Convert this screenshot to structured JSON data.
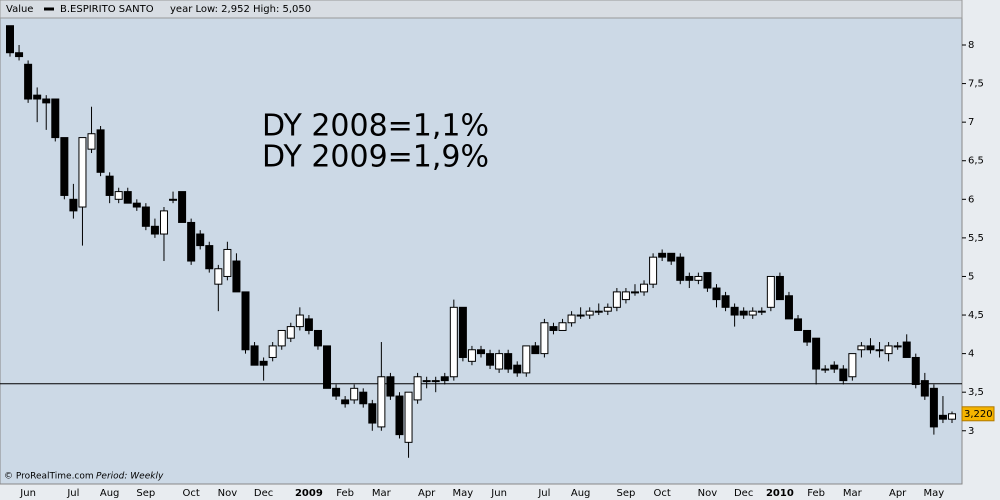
{
  "chart_data": {
    "type": "candlestick",
    "header": {
      "label": "Value",
      "title": "B.ESPIRITO SANTO",
      "subtitle": "year Low: 2,952 High: 5,050"
    },
    "footer": {
      "source": "© ProRealTime.com",
      "period": "Period: Weekly"
    },
    "annotations": [
      "DY 2008=1,1%",
      "DY 2009=1,9%"
    ],
    "categories": [
      null,
      null,
      "Jun",
      null,
      null,
      null,
      null,
      "Jul",
      null,
      null,
      null,
      "Aug",
      null,
      null,
      null,
      "Sep",
      null,
      null,
      null,
      null,
      "Oct",
      null,
      null,
      null,
      "Nov",
      null,
      null,
      null,
      "Dec",
      null,
      null,
      null,
      null,
      "2009",
      null,
      null,
      null,
      "Feb",
      null,
      null,
      null,
      "Mar",
      null,
      null,
      null,
      null,
      "Apr",
      null,
      null,
      null,
      "May",
      null,
      null,
      null,
      "Jun",
      null,
      null,
      null,
      null,
      "Jul",
      null,
      null,
      null,
      "Aug",
      null,
      null,
      null,
      null,
      "Sep",
      null,
      null,
      null,
      "Oct",
      null,
      null,
      null,
      null,
      "Nov",
      null,
      null,
      null,
      "Dec",
      null,
      null,
      null,
      "2010",
      null,
      null,
      null,
      "Feb",
      null,
      null,
      null,
      "Mar",
      null,
      null,
      null,
      null,
      "Apr",
      null,
      null,
      null,
      "May",
      null,
      null
    ],
    "bold_categories": [
      "2009",
      "2010"
    ],
    "open": [
      8.25,
      7.9,
      7.75,
      7.35,
      7.3,
      7.3,
      6.8,
      6.0,
      5.9,
      6.65,
      6.9,
      6.3,
      6.0,
      6.1,
      5.95,
      5.9,
      5.65,
      5.55,
      6.0,
      6.1,
      5.7,
      5.55,
      5.4,
      4.9,
      5.0,
      5.2,
      4.8,
      4.1,
      3.9,
      3.95,
      4.1,
      4.2,
      4.35,
      4.45,
      4.3,
      4.1,
      3.55,
      3.4,
      3.4,
      3.5,
      3.35,
      3.05,
      3.7,
      3.45,
      2.85,
      3.4,
      3.65,
      3.65,
      3.7,
      3.7,
      4.6,
      3.9,
      4.05,
      4.0,
      3.8,
      4.0,
      3.85,
      3.75,
      4.1,
      4.0,
      4.35,
      4.3,
      4.4,
      4.5,
      4.5,
      4.55,
      4.55,
      4.6,
      4.7,
      4.8,
      4.8,
      4.9,
      5.3,
      5.3,
      5.25,
      5.0,
      4.95,
      5.05,
      4.85,
      4.75,
      4.6,
      4.55,
      4.5,
      4.55,
      4.6,
      5.0,
      4.75,
      4.45,
      4.3,
      4.2,
      3.8,
      3.85,
      3.8,
      3.7,
      4.05,
      4.1,
      4.05,
      4.0,
      4.1,
      4.15,
      3.95,
      3.65,
      3.55,
      3.2,
      3.15
    ],
    "high": [
      8.25,
      8.0,
      7.8,
      7.45,
      7.35,
      7.3,
      6.8,
      6.2,
      6.8,
      7.2,
      6.95,
      6.35,
      6.15,
      6.15,
      6.0,
      5.95,
      5.75,
      5.9,
      6.1,
      6.1,
      5.75,
      5.6,
      5.45,
      5.15,
      5.45,
      5.3,
      4.8,
      4.15,
      3.95,
      4.15,
      4.3,
      4.4,
      4.6,
      4.5,
      4.3,
      4.1,
      3.6,
      3.45,
      3.6,
      3.55,
      3.4,
      4.15,
      3.75,
      3.5,
      3.5,
      3.75,
      3.7,
      3.7,
      3.75,
      4.7,
      4.6,
      4.1,
      4.1,
      4.05,
      4.05,
      4.05,
      3.9,
      4.1,
      4.15,
      4.45,
      4.4,
      4.45,
      4.55,
      4.6,
      4.6,
      4.65,
      4.65,
      4.85,
      4.85,
      4.9,
      4.95,
      5.3,
      5.35,
      5.3,
      5.3,
      5.05,
      5.05,
      5.05,
      4.9,
      4.8,
      4.65,
      4.6,
      4.6,
      4.6,
      5.0,
      5.05,
      4.8,
      4.5,
      4.3,
      4.2,
      3.85,
      3.9,
      3.85,
      4.0,
      4.15,
      4.2,
      4.15,
      4.15,
      4.15,
      4.25,
      4.0,
      3.75,
      3.6,
      3.45,
      3.25
    ],
    "low": [
      7.85,
      7.8,
      7.25,
      7.0,
      6.9,
      6.75,
      6.0,
      5.75,
      5.4,
      6.6,
      6.3,
      5.95,
      5.95,
      5.95,
      5.85,
      5.6,
      5.5,
      5.2,
      5.95,
      5.7,
      5.15,
      5.35,
      5.05,
      4.55,
      4.95,
      4.8,
      4.0,
      3.85,
      3.65,
      3.9,
      4.05,
      4.15,
      4.3,
      4.25,
      4.05,
      3.55,
      3.4,
      3.3,
      3.35,
      3.3,
      3.0,
      3.0,
      3.4,
      2.9,
      2.65,
      3.35,
      3.55,
      3.5,
      3.6,
      3.65,
      3.9,
      3.85,
      3.95,
      3.8,
      3.75,
      3.75,
      3.7,
      3.7,
      4.0,
      3.95,
      4.25,
      4.3,
      4.35,
      4.45,
      4.45,
      4.5,
      4.5,
      4.55,
      4.65,
      4.75,
      4.75,
      4.85,
      5.2,
      5.15,
      4.9,
      4.85,
      4.9,
      4.8,
      4.6,
      4.55,
      4.35,
      4.45,
      4.45,
      4.5,
      4.55,
      4.7,
      4.45,
      4.3,
      4.1,
      3.6,
      3.75,
      3.75,
      3.6,
      3.65,
      3.95,
      4.0,
      3.95,
      3.9,
      4.05,
      3.95,
      3.55,
      3.4,
      2.95,
      3.1,
      3.1
    ],
    "close": [
      7.9,
      7.85,
      7.3,
      7.3,
      7.25,
      6.8,
      6.05,
      5.85,
      6.8,
      6.85,
      6.35,
      6.05,
      6.1,
      5.95,
      5.9,
      5.65,
      5.55,
      5.85,
      6.0,
      5.7,
      5.2,
      5.4,
      5.1,
      5.1,
      5.35,
      4.8,
      4.05,
      3.85,
      3.85,
      4.1,
      4.3,
      4.35,
      4.5,
      4.3,
      4.1,
      3.55,
      3.45,
      3.35,
      3.55,
      3.35,
      3.1,
      3.7,
      3.45,
      2.95,
      3.5,
      3.7,
      3.65,
      3.65,
      3.65,
      4.6,
      3.95,
      4.05,
      4.0,
      3.85,
      4.0,
      3.8,
      3.75,
      4.1,
      4.0,
      4.4,
      4.3,
      4.4,
      4.5,
      4.5,
      4.55,
      4.55,
      4.6,
      4.8,
      4.8,
      4.8,
      4.9,
      5.25,
      5.25,
      5.2,
      4.95,
      4.95,
      5.0,
      4.85,
      4.7,
      4.6,
      4.5,
      4.5,
      4.55,
      4.55,
      5.0,
      4.7,
      4.45,
      4.3,
      4.15,
      3.8,
      3.8,
      3.8,
      3.65,
      4.0,
      4.1,
      4.05,
      4.05,
      4.1,
      4.1,
      3.95,
      3.6,
      3.45,
      3.05,
      3.15,
      3.22
    ],
    "last_price": {
      "value": 3.22,
      "label": "3,220"
    },
    "hline": 3.61,
    "ylim": [
      2.31,
      8.35
    ],
    "yticks": [
      3,
      {
        "value": 3.5,
        "label": "3,5"
      },
      4,
      {
        "value": 4.5,
        "label": "4,5"
      },
      5,
      {
        "value": 5.5,
        "label": "5,5"
      },
      6,
      {
        "value": 6.5,
        "label": "6,5"
      },
      7,
      {
        "value": 7.5,
        "label": "7,5"
      },
      8
    ],
    "up_color": "#ffffff",
    "down_color": "#000000",
    "background": "#ccd9e6"
  }
}
